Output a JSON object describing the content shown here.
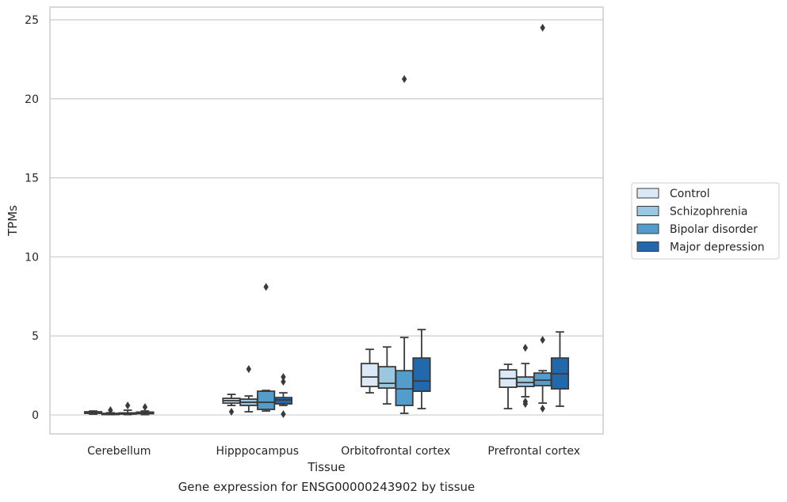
{
  "caption": "Gene expression for ENSG00000243902 by tissue",
  "colors": {
    "grid": "#cccccc",
    "frame": "#cccccc",
    "line": "#3a3a3a",
    "series": [
      "#dbe9f6",
      "#9ac8e0",
      "#529dcc",
      "#2268ad"
    ]
  },
  "chart_data": {
    "type": "box",
    "xlabel": "Tissue",
    "ylabel": "TPMs",
    "ylim": [
      -1.2,
      25.8
    ],
    "yticks": [
      0,
      5,
      10,
      15,
      20,
      25
    ],
    "grid": "horizontal",
    "legend": "right",
    "categories": [
      "Cerebellum",
      "Hipppocampus",
      "Orbitofrontal cortex",
      "Prefrontal cortex"
    ],
    "series": [
      {
        "name": "Control",
        "boxes": [
          {
            "whislo": 0.05,
            "q1": 0.1,
            "med": 0.15,
            "q3": 0.2,
            "whishi": 0.25,
            "fliers": []
          },
          {
            "whislo": 0.6,
            "q1": 0.75,
            "med": 0.9,
            "q3": 1.05,
            "whishi": 1.3,
            "fliers": [
              0.2
            ]
          },
          {
            "whislo": 1.4,
            "q1": 1.8,
            "med": 2.4,
            "q3": 3.25,
            "whishi": 4.15,
            "fliers": []
          },
          {
            "whislo": 0.4,
            "q1": 1.75,
            "med": 2.3,
            "q3": 2.85,
            "whishi": 3.2,
            "fliers": []
          }
        ]
      },
      {
        "name": "Schizophrenia",
        "boxes": [
          {
            "whislo": 0.02,
            "q1": 0.06,
            "med": 0.08,
            "q3": 0.1,
            "whishi": 0.14,
            "fliers": [
              0.3
            ]
          },
          {
            "whislo": 0.2,
            "q1": 0.6,
            "med": 0.8,
            "q3": 1.0,
            "whishi": 1.2,
            "fliers": [
              2.9
            ]
          },
          {
            "whislo": 0.7,
            "q1": 1.7,
            "med": 2.0,
            "q3": 3.05,
            "whishi": 4.3,
            "fliers": []
          },
          {
            "whislo": 1.15,
            "q1": 1.8,
            "med": 2.05,
            "q3": 2.4,
            "whishi": 3.25,
            "fliers": [
              0.7,
              0.85,
              4.25
            ]
          }
        ]
      },
      {
        "name": "Bipolar disorder",
        "boxes": [
          {
            "whislo": 0.02,
            "q1": 0.07,
            "med": 0.1,
            "q3": 0.13,
            "whishi": 0.3,
            "fliers": [
              0.6
            ]
          },
          {
            "whislo": 0.25,
            "q1": 0.35,
            "med": 0.8,
            "q3": 1.5,
            "whishi": 1.55,
            "fliers": [
              8.1
            ]
          },
          {
            "whislo": 0.1,
            "q1": 0.6,
            "med": 1.65,
            "q3": 2.8,
            "whishi": 4.9,
            "fliers": [
              21.25
            ]
          },
          {
            "whislo": 0.75,
            "q1": 1.85,
            "med": 2.2,
            "q3": 2.65,
            "whishi": 2.8,
            "fliers": [
              0.4,
              4.75,
              24.5
            ]
          }
        ]
      },
      {
        "name": "Major depression",
        "boxes": [
          {
            "whislo": 0.02,
            "q1": 0.08,
            "med": 0.12,
            "q3": 0.18,
            "whishi": 0.25,
            "fliers": [
              0.5
            ]
          },
          {
            "whislo": 0.6,
            "q1": 0.7,
            "med": 0.95,
            "q3": 1.1,
            "whishi": 1.4,
            "fliers": [
              0.05,
              2.1,
              2.4
            ]
          },
          {
            "whislo": 0.4,
            "q1": 1.5,
            "med": 2.15,
            "q3": 3.6,
            "whishi": 5.4,
            "fliers": []
          },
          {
            "whislo": 0.55,
            "q1": 1.65,
            "med": 2.6,
            "q3": 3.6,
            "whishi": 5.25,
            "fliers": []
          }
        ]
      }
    ]
  }
}
